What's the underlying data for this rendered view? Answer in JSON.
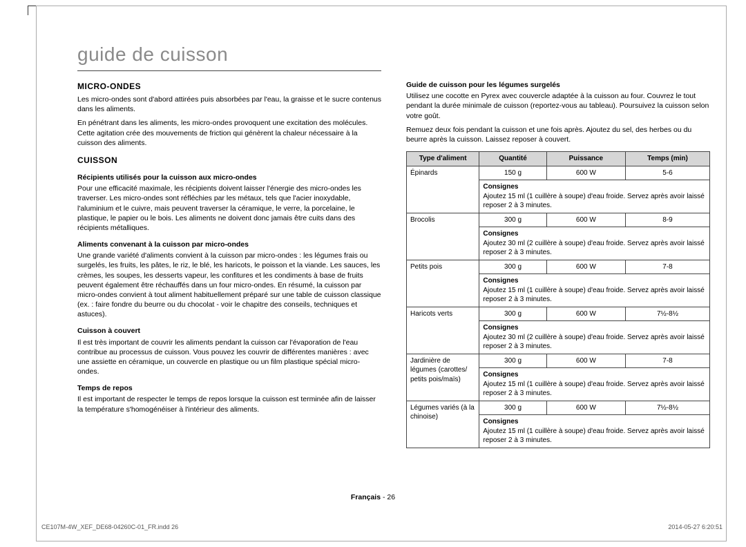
{
  "title": "guide de cuisson",
  "left": {
    "h_micro": "MICRO-ONDES",
    "p_micro_1": "Les micro-ondes sont d'abord attirées puis absorbées par l'eau, la graisse et le sucre contenus dans les aliments.",
    "p_micro_2": "En pénétrant dans les aliments, les micro-ondes provoquent une excitation des molécules. Cette agitation crée des mouvements de friction qui génèrent la chaleur nécessaire à la cuisson des aliments.",
    "h_cuisson": "CUISSON",
    "h_recipients": "Récipients utilisés pour la cuisson aux micro-ondes",
    "p_recipients": "Pour une efficacité maximale, les récipients doivent laisser l'énergie des micro-ondes les traverser. Les micro-ondes sont réfléchies par les métaux, tels que l'acier inoxydable, l'aluminium et le cuivre, mais peuvent traverser la céramique, le verre, la porcelaine, le plastique, le papier ou le bois. Les aliments ne doivent donc jamais être cuits dans des récipients métalliques.",
    "h_aliments": "Aliments convenant à la cuisson par micro-ondes",
    "p_aliments": "Une grande variété d'aliments convient à la cuisson par micro-ondes : les légumes frais ou surgelés, les fruits, les pâtes, le riz, le blé, les haricots, le poisson et la viande. Les sauces, les crèmes, les soupes, les desserts vapeur, les confitures et les condiments à base de fruits peuvent également être réchauffés dans un four micro-ondes. En résumé, la cuisson par micro-ondes convient à tout aliment habituellement préparé sur une table de cuisson classique (ex. : faire fondre du beurre ou du chocolat - voir le chapitre des conseils, techniques et astuces).",
    "h_couvert": "Cuisson à couvert",
    "p_couvert": "Il est très important de couvrir les aliments pendant la cuisson car l'évaporation de l'eau contribue au processus de cuisson. Vous pouvez les couvrir de différentes manières : avec une assiette en céramique, un couvercle en plastique ou un film plastique spécial micro-ondes.",
    "h_repos": "Temps de repos",
    "p_repos": "Il est important de respecter le temps de repos lorsque la cuisson est terminée afin de laisser la température s'homogénéiser à l'intérieur des aliments."
  },
  "right": {
    "h_guide": "Guide de cuisson pour les légumes surgelés",
    "p_guide_1": "Utilisez une cocotte en Pyrex avec couvercle adaptée à la cuisson au four. Couvrez le tout pendant la durée minimale de cuisson (reportez-vous au tableau). Poursuivez la cuisson selon votre goût.",
    "p_guide_2": "Remuez deux fois pendant la cuisson et une fois après. Ajoutez du sel, des herbes ou du beurre après la cuisson. Laissez reposer à couvert.",
    "table": {
      "headers": [
        "Type d'aliment",
        "Quantité",
        "Puissance",
        "Temps (min)"
      ],
      "consignes_label": "Consignes",
      "rows": [
        {
          "food": "Épinards",
          "qty": "150 g",
          "power": "600 W",
          "time": "5-6",
          "instr": "Ajoutez 15 ml (1 cuillère à soupe) d'eau froide. Servez après avoir laissé reposer 2 à 3 minutes."
        },
        {
          "food": "Brocolis",
          "qty": "300 g",
          "power": "600 W",
          "time": "8-9",
          "instr": "Ajoutez 30 ml (2 cuillère à soupe) d'eau froide. Servez après avoir laissé reposer 2 à 3 minutes."
        },
        {
          "food": "Petits pois",
          "qty": "300 g",
          "power": "600 W",
          "time": "7-8",
          "instr": "Ajoutez 15 ml (1 cuillère à soupe) d'eau froide. Servez après avoir laissé reposer 2 à 3 minutes."
        },
        {
          "food": "Haricots verts",
          "qty": "300 g",
          "power": "600 W",
          "time": "7½-8½",
          "instr": "Ajoutez 30 ml (2 cuillère à soupe) d'eau froide. Servez après avoir laissé reposer 2 à 3 minutes."
        },
        {
          "food": "Jardinière de légumes (carottes/ petits pois/maïs)",
          "qty": "300 g",
          "power": "600 W",
          "time": "7-8",
          "instr": "Ajoutez 15 ml (1 cuillère à soupe) d'eau froide. Servez après avoir laissé reposer 2 à 3 minutes."
        },
        {
          "food": "Légumes variés (à la chinoise)",
          "qty": "300 g",
          "power": "600 W",
          "time": "7½-8½",
          "instr": "Ajoutez 15 ml (1 cuillère à soupe) d'eau froide. Servez après avoir laissé reposer 2 à 3 minutes."
        }
      ]
    }
  },
  "footer": {
    "lang": "Français",
    "sep": " - ",
    "page": "26",
    "file": "CE107M-4W_XEF_DE68-04260C-01_FR.indd   26",
    "time": "2014-05-27    6:20:51"
  }
}
